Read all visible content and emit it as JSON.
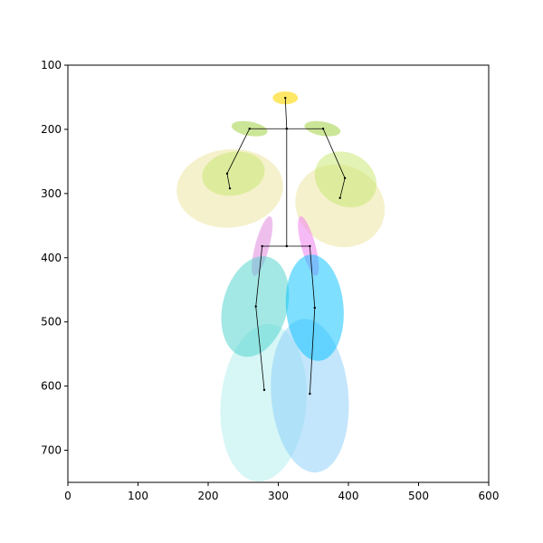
{
  "chart_data": {
    "type": "ellipse",
    "xlim": [
      0,
      600
    ],
    "ylim": [
      750,
      100
    ],
    "xticks": [
      0,
      100,
      200,
      300,
      400,
      500,
      600
    ],
    "yticks": [
      100,
      200,
      300,
      400,
      500,
      600,
      700
    ],
    "ellipses": [
      {
        "cx": 310,
        "cy": 151,
        "rx": 18,
        "ry": 10,
        "angle": 0,
        "color": "#ffd700",
        "alpha": 0.6
      },
      {
        "cx": 231,
        "cy": 292,
        "rx": 76,
        "ry": 61,
        "angle": -5,
        "color": "#eee8aa",
        "alpha": 0.6
      },
      {
        "cx": 388,
        "cy": 319,
        "rx": 65,
        "ry": 63,
        "angle": 25,
        "color": "#eee8aa",
        "alpha": 0.6
      },
      {
        "cx": 259,
        "cy": 199,
        "rx": 26,
        "ry": 11,
        "angle": 10,
        "color": "#9acd32",
        "alpha": 0.5
      },
      {
        "cx": 363,
        "cy": 199,
        "rx": 26,
        "ry": 11,
        "angle": 10,
        "color": "#9acd32",
        "alpha": 0.5
      },
      {
        "cx": 236,
        "cy": 269,
        "rx": 45,
        "ry": 34,
        "angle": -10,
        "color": "#c5e86c",
        "alpha": 0.5
      },
      {
        "cx": 396,
        "cy": 278,
        "rx": 46,
        "ry": 41,
        "angle": 30,
        "color": "#c5e86c",
        "alpha": 0.5
      },
      {
        "cx": 277,
        "cy": 382,
        "rx": 10,
        "ry": 48,
        "angle": 15,
        "color": "#da70d6",
        "alpha": 0.45
      },
      {
        "cx": 343,
        "cy": 382,
        "rx": 10,
        "ry": 48,
        "angle": -15,
        "color": "#ee82ee",
        "alpha": 0.55
      },
      {
        "cx": 279,
        "cy": 626,
        "rx": 61,
        "ry": 123,
        "angle": 5,
        "color": "#afeeee",
        "alpha": 0.5
      },
      {
        "cx": 345,
        "cy": 615,
        "rx": 55,
        "ry": 120,
        "angle": -5,
        "color": "#87cefa",
        "alpha": 0.5
      },
      {
        "cx": 267,
        "cy": 476,
        "rx": 46,
        "ry": 80,
        "angle": 15,
        "color": "#48d1cc",
        "alpha": 0.5
      },
      {
        "cx": 352,
        "cy": 478,
        "rx": 41,
        "ry": 83,
        "angle": -5,
        "color": "#00bfff",
        "alpha": 0.5
      }
    ],
    "skeleton": [
      {
        "x": [
          310,
          312,
          312
        ],
        "y": [
          151,
          199,
          382
        ]
      },
      {
        "x": [
          231,
          227,
          259,
          312,
          364,
          395,
          388
        ],
        "y": [
          292,
          269,
          199,
          199,
          199,
          276,
          307
        ]
      },
      {
        "x": [
          280,
          268,
          277,
          312,
          345,
          352,
          345
        ],
        "y": [
          606,
          476,
          382,
          382,
          382,
          478,
          612
        ]
      }
    ]
  }
}
